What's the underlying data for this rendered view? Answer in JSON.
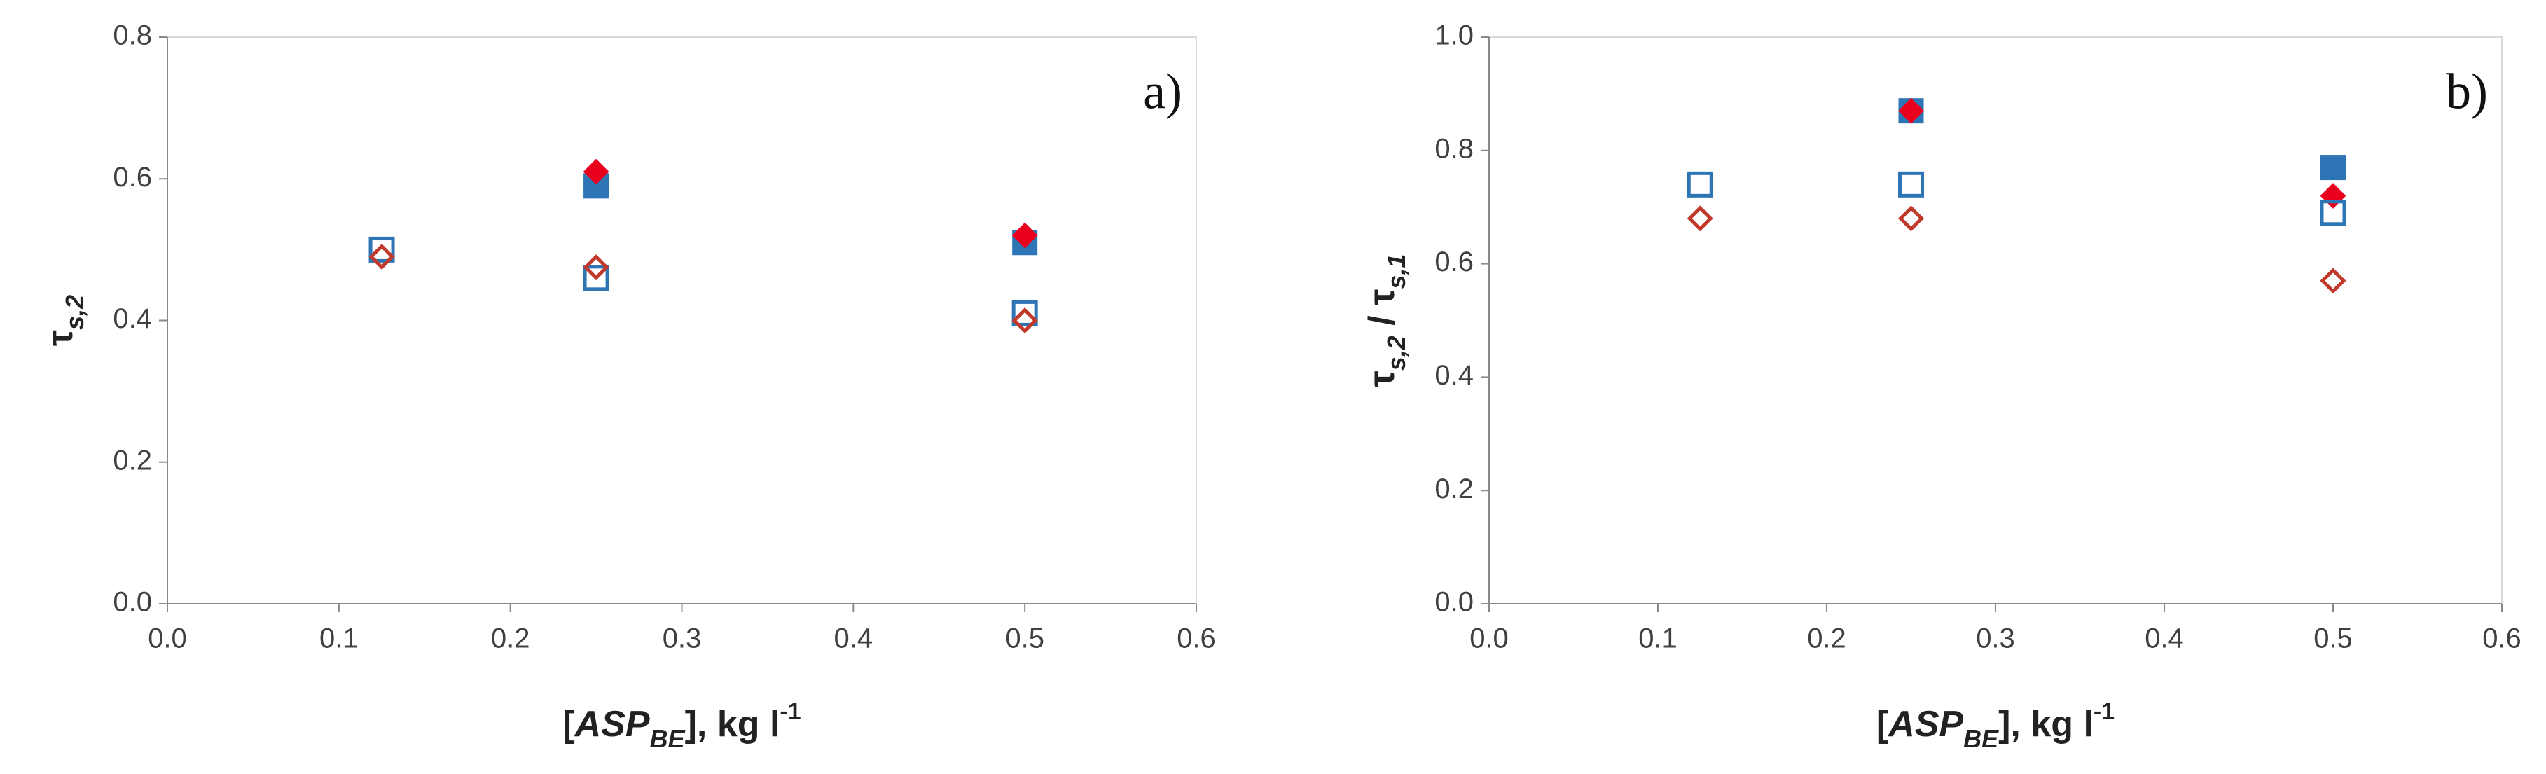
{
  "chart_data": [
    {
      "type": "scatter",
      "annotation": "a)",
      "xlabel": [
        {
          "text": "["
        },
        {
          "text": "ASP",
          "style": "italic"
        },
        {
          "text": "BE",
          "style": "sub-italic"
        },
        {
          "text": "], kg l"
        },
        {
          "text": "-1",
          "style": "sup"
        }
      ],
      "ylabel": [
        {
          "text": "τ"
        },
        {
          "text": "s,2",
          "style": "sub-italic"
        }
      ],
      "xlim": [
        0,
        0.6
      ],
      "xticks": [
        {
          "value": 0,
          "label": "0.0"
        },
        0.1,
        0.2,
        0.3,
        0.4,
        0.5,
        0.6
      ],
      "ylim": [
        0,
        0.8
      ],
      "yticks": [
        {
          "value": 0,
          "label": "0.0"
        },
        0.2,
        0.4,
        0.6,
        0.8
      ],
      "series": [
        {
          "marker": "square",
          "filled": true,
          "color": "#2e75b6",
          "x": [
            0.25,
            0.5
          ],
          "values": [
            0.59,
            0.51
          ]
        },
        {
          "marker": "diamond",
          "filled": true,
          "color": "#e8001c",
          "x": [
            0.25,
            0.5
          ],
          "values": [
            0.61,
            0.52
          ]
        },
        {
          "marker": "square",
          "filled": false,
          "color": "#2e75b6",
          "x": [
            0.125,
            0.25,
            0.5
          ],
          "values": [
            0.5,
            0.46,
            0.41
          ]
        },
        {
          "marker": "diamond",
          "filled": false,
          "color": "#c0392b",
          "x": [
            0.125,
            0.25,
            0.5
          ],
          "values": [
            0.49,
            0.475,
            0.4
          ]
        }
      ]
    },
    {
      "type": "scatter",
      "annotation": "b)",
      "xlabel": [
        {
          "text": "["
        },
        {
          "text": "ASP",
          "style": "italic"
        },
        {
          "text": "BE",
          "style": "sub-italic"
        },
        {
          "text": "], kg l"
        },
        {
          "text": "-1",
          "style": "sup"
        }
      ],
      "ylabel": [
        {
          "text": "τ"
        },
        {
          "text": "s,2",
          "style": "sub-italic"
        },
        {
          "text": " / "
        },
        {
          "text": "τ"
        },
        {
          "text": "s,1",
          "style": "sub-italic"
        }
      ],
      "xlim": [
        0,
        0.6
      ],
      "xticks": [
        {
          "value": 0,
          "label": "0.0"
        },
        0.1,
        0.2,
        0.3,
        0.4,
        0.5,
        0.6
      ],
      "ylim": [
        0,
        1
      ],
      "yticks": [
        {
          "value": 0,
          "label": "0.0"
        },
        0.2,
        0.4,
        0.6,
        0.8,
        {
          "value": 1,
          "label": "1.0"
        }
      ],
      "series": [
        {
          "marker": "square",
          "filled": true,
          "color": "#2e75b6",
          "x": [
            0.25,
            0.5
          ],
          "values": [
            0.87,
            0.77
          ]
        },
        {
          "marker": "diamond",
          "filled": true,
          "color": "#e8001c",
          "x": [
            0.25,
            0.5
          ],
          "values": [
            0.87,
            0.72
          ]
        },
        {
          "marker": "square",
          "filled": false,
          "color": "#2e75b6",
          "x": [
            0.125,
            0.25,
            0.5
          ],
          "values": [
            0.74,
            0.74,
            0.69
          ]
        },
        {
          "marker": "diamond",
          "filled": false,
          "color": "#c0392b",
          "x": [
            0.125,
            0.25,
            0.5
          ],
          "values": [
            0.68,
            0.68,
            0.57
          ]
        }
      ]
    }
  ]
}
